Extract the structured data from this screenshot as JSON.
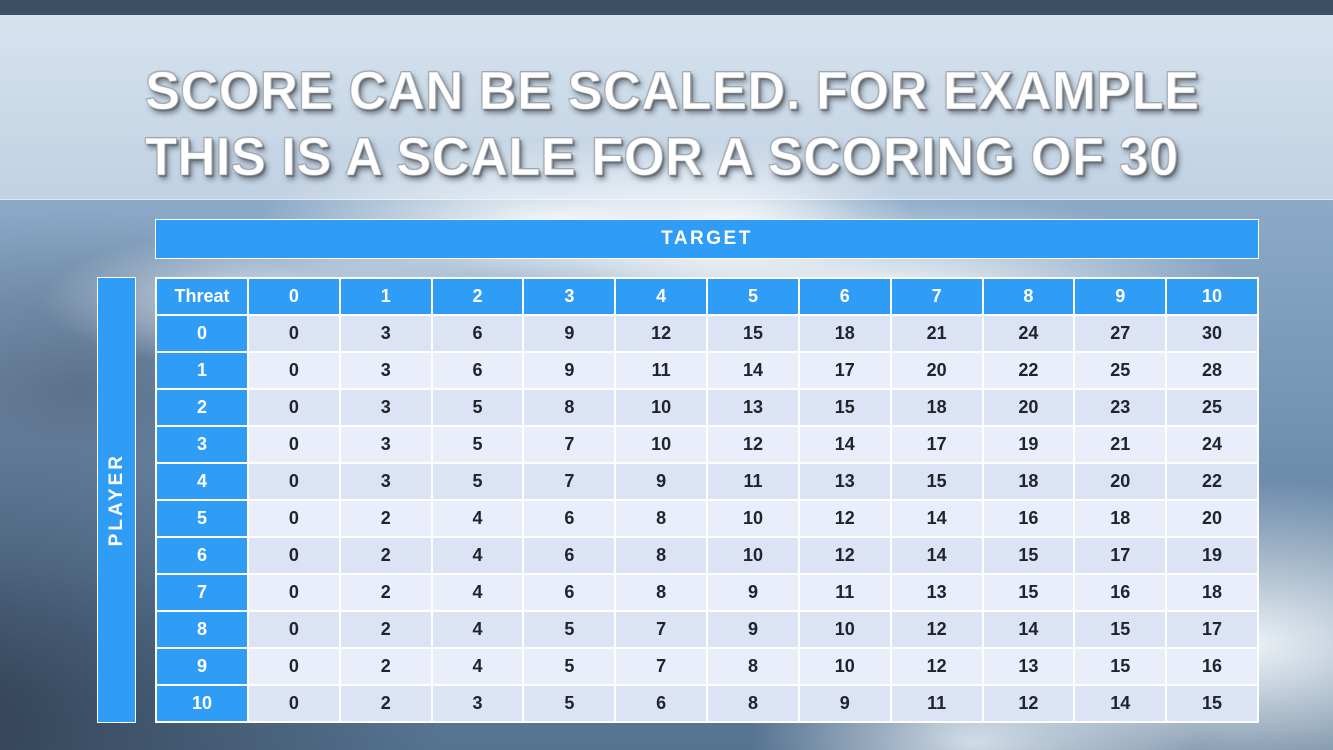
{
  "colors": {
    "accent": "#2F9CF5",
    "topbar": "#3C4F63",
    "row-even": "#DCE3F5",
    "row-odd": "#EAEEFA",
    "cell-text": "#20242C"
  },
  "slide": {
    "title_line1": "SCORE CAN BE SCALED. FOR EXAMPLE",
    "title_line2": "THIS IS A SCALE FOR A SCORING OF 30"
  },
  "table": {
    "target_label": "TARGET",
    "player_label": "PLAYER",
    "corner_label": "Threat",
    "column_headers": [
      "0",
      "1",
      "2",
      "3",
      "4",
      "5",
      "6",
      "7",
      "8",
      "9",
      "10"
    ],
    "rows": [
      {
        "threat": "0",
        "values": [
          0,
          3,
          6,
          9,
          12,
          15,
          18,
          21,
          24,
          27,
          30
        ]
      },
      {
        "threat": "1",
        "values": [
          0,
          3,
          6,
          9,
          11,
          14,
          17,
          20,
          22,
          25,
          28
        ]
      },
      {
        "threat": "2",
        "values": [
          0,
          3,
          5,
          8,
          10,
          13,
          15,
          18,
          20,
          23,
          25
        ]
      },
      {
        "threat": "3",
        "values": [
          0,
          3,
          5,
          7,
          10,
          12,
          14,
          17,
          19,
          21,
          24
        ]
      },
      {
        "threat": "4",
        "values": [
          0,
          3,
          5,
          7,
          9,
          11,
          13,
          15,
          18,
          20,
          22
        ]
      },
      {
        "threat": "5",
        "values": [
          0,
          2,
          4,
          6,
          8,
          10,
          12,
          14,
          16,
          18,
          20
        ]
      },
      {
        "threat": "6",
        "values": [
          0,
          2,
          4,
          6,
          8,
          10,
          12,
          14,
          15,
          17,
          19
        ]
      },
      {
        "threat": "7",
        "values": [
          0,
          2,
          4,
          6,
          8,
          9,
          11,
          13,
          15,
          16,
          18
        ]
      },
      {
        "threat": "8",
        "values": [
          0,
          2,
          4,
          5,
          7,
          9,
          10,
          12,
          14,
          15,
          17
        ]
      },
      {
        "threat": "9",
        "values": [
          0,
          2,
          4,
          5,
          7,
          8,
          10,
          12,
          13,
          15,
          16
        ]
      },
      {
        "threat": "10",
        "values": [
          0,
          2,
          3,
          5,
          6,
          8,
          9,
          11,
          12,
          14,
          15
        ]
      }
    ]
  }
}
